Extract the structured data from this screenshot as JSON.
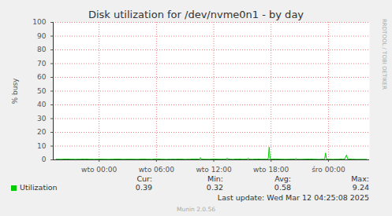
{
  "chart_data": {
    "type": "line",
    "title": "Disk utilization for /dev/nvme0n1 - by day",
    "y_label": "% busy",
    "x": [
      -4.5,
      -4,
      -3.5,
      -3,
      -2.5,
      -2,
      -1.5,
      -1,
      -0.5,
      0,
      0.5,
      1,
      1.5,
      2,
      2.5,
      3,
      3.5,
      4,
      4.5,
      5,
      5.5,
      6,
      6.5,
      7,
      7.5,
      8,
      8.5,
      9,
      9.5,
      10,
      10.5,
      10.6,
      10.7,
      11,
      11.5,
      12,
      12.5,
      13,
      13.3,
      13.4,
      13.5,
      14,
      14.5,
      15,
      15.5,
      15.6,
      15.7,
      16,
      16.5,
      17,
      17.5,
      17.7,
      17.8,
      17.9,
      18,
      18.5,
      19,
      19.5,
      20,
      20.5,
      20.6,
      20.7,
      21,
      21.5,
      22,
      22.5,
      23,
      23.5,
      23.6,
      23.7,
      23.8,
      24,
      24.5,
      25,
      25.5,
      25.7,
      25.8,
      25.9,
      26,
      26.5,
      27,
      27.5,
      28
    ],
    "series": [
      {
        "name": "Utilization",
        "color": "#00cc00",
        "values": [
          0.5,
          0.4,
          0.6,
          0.5,
          0.4,
          0.5,
          0.6,
          0.5,
          0.4,
          0.5,
          0.5,
          0.4,
          0.5,
          0.6,
          0.4,
          0.5,
          0.5,
          0.4,
          0.6,
          0.5,
          0.4,
          0.7,
          0.5,
          0.4,
          0.5,
          0.5,
          0.6,
          0.4,
          0.5,
          0.6,
          0.5,
          1.6,
          0.5,
          0.5,
          0.4,
          0.6,
          0.5,
          0.5,
          0.5,
          1.4,
          0.5,
          0.4,
          0.6,
          0.5,
          0.5,
          1.3,
          0.5,
          0.4,
          0.6,
          0.5,
          0.5,
          0.6,
          9.24,
          0.7,
          0.5,
          0.6,
          0.5,
          0.4,
          0.5,
          0.5,
          1.2,
          0.5,
          0.4,
          0.5,
          0.6,
          0.5,
          0.4,
          0.5,
          0.5,
          5.0,
          0.6,
          0.5,
          0.4,
          0.5,
          0.6,
          0.6,
          2.0,
          3.6,
          0.7,
          0.5,
          0.4,
          0.4,
          0.39
        ]
      }
    ],
    "xlim": [
      -4.8,
      28.3
    ],
    "xticks": [
      {
        "value": 0,
        "label": "wto 00:00"
      },
      {
        "value": 6,
        "label": "wto 06:00"
      },
      {
        "value": 12,
        "label": "wto 12:00"
      },
      {
        "value": 18,
        "label": "wto 18:00"
      },
      {
        "value": 24,
        "label": "śro 00:00"
      }
    ],
    "ylim": [
      0,
      100
    ],
    "yticks": [
      0,
      10,
      20,
      30,
      40,
      50,
      60,
      70,
      80,
      90,
      100
    ],
    "grid": true,
    "legend": "bottom",
    "stats": [
      {
        "label": "Cur:",
        "value": 0.39
      },
      {
        "label": "Min:",
        "value": 0.32
      },
      {
        "label": "Avg:",
        "value": 0.58
      },
      {
        "label": "Max:",
        "value": 9.24
      }
    ],
    "last_update": "Last update: Wed Mar 12 04:25:08 2025",
    "side_text": "RRDTOOL / TOBI OETIKER",
    "footer": "Munin 2.0.56"
  }
}
